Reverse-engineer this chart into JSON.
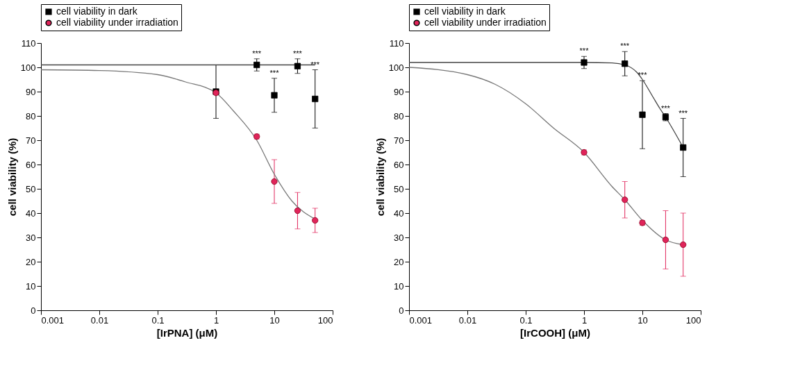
{
  "chart_data": [
    {
      "type": "scatter",
      "xlabel": "[IrPNA] (μM)",
      "ylabel": "cell viability (%)",
      "log": "x",
      "xlim": [
        0.001,
        100
      ],
      "xticks": [
        0.001,
        0.01,
        0.1,
        1,
        10,
        100
      ],
      "ylim": [
        0,
        110
      ],
      "yticks": [
        0,
        10,
        20,
        30,
        40,
        50,
        60,
        70,
        80,
        90,
        100,
        110
      ],
      "grid": false,
      "legend": "top",
      "series": [
        {
          "name": "cell viability in dark",
          "type": "scatter",
          "marker": "square",
          "color": "#000000",
          "x": [
            1,
            5,
            10,
            25,
            50
          ],
          "values": [
            90,
            101,
            88.5,
            100.5,
            87
          ],
          "errors": [
            11,
            2.5,
            7,
            3,
            12
          ]
        },
        {
          "name": "cell viability under irradiation",
          "type": "scatter",
          "marker": "circle",
          "color": "#e0245a",
          "x": [
            1,
            5,
            10,
            25,
            50
          ],
          "values": [
            89.5,
            71.5,
            53,
            41,
            37
          ],
          "errors": [
            null,
            1,
            9,
            7.5,
            5
          ]
        },
        {
          "type": "line",
          "color": "#444444",
          "x": [
            0.001,
            50
          ],
          "values": [
            101,
            101
          ]
        },
        {
          "type": "line",
          "color": "#777777",
          "x": [
            0.001,
            0.01,
            0.1,
            0.3,
            1,
            2,
            5,
            10,
            20,
            50
          ],
          "values": [
            99,
            98.7,
            97,
            94,
            89.5,
            82,
            70,
            56,
            45,
            37.5
          ]
        }
      ],
      "annotations": [
        {
          "text": "***",
          "x": 5,
          "y": 103.5
        },
        {
          "text": "***",
          "x": 10,
          "y": 95.5
        },
        {
          "text": "***",
          "x": 25,
          "y": 103.5
        },
        {
          "text": "***",
          "x": 50,
          "y": 99
        }
      ]
    },
    {
      "type": "scatter",
      "xlabel": "[IrCOOH] (μM)",
      "ylabel": "cell viability (%)",
      "log": "x",
      "xlim": [
        0.001,
        100
      ],
      "xticks": [
        0.001,
        0.01,
        0.1,
        1,
        10,
        100
      ],
      "ylim": [
        0,
        110
      ],
      "yticks": [
        0,
        10,
        20,
        30,
        40,
        50,
        60,
        70,
        80,
        90,
        100,
        110
      ],
      "grid": false,
      "legend": "top",
      "series": [
        {
          "name": "cell viability in dark",
          "type": "scatter",
          "marker": "square",
          "color": "#000000",
          "x": [
            1,
            5,
            10,
            25,
            50
          ],
          "values": [
            102,
            101.5,
            80.5,
            79.5,
            67
          ],
          "errors": [
            2.5,
            5,
            14,
            1.5,
            12
          ]
        },
        {
          "name": "cell viability under irradiation",
          "type": "scatter",
          "marker": "circle",
          "color": "#e0245a",
          "x": [
            1,
            5,
            10,
            25,
            50
          ],
          "values": [
            65,
            45.5,
            36,
            29,
            27
          ],
          "errors": [
            1,
            7.5,
            1,
            12,
            13
          ]
        },
        {
          "type": "line",
          "color": "#444444",
          "x": [
            0.001,
            0.1,
            1,
            3,
            5,
            8,
            10,
            15,
            20,
            25,
            50
          ],
          "values": [
            102,
            102,
            102,
            101.8,
            101,
            98,
            95,
            88,
            83,
            79.5,
            67
          ]
        },
        {
          "type": "line",
          "color": "#777777",
          "x": [
            0.001,
            0.01,
            0.03,
            0.1,
            0.3,
            1,
            3,
            5,
            10,
            25,
            50
          ],
          "values": [
            100,
            97,
            93,
            85,
            75,
            65,
            51,
            45.5,
            37,
            29,
            27
          ]
        }
      ],
      "annotations": [
        {
          "text": "***",
          "x": 1,
          "y": 104.5
        },
        {
          "text": "***",
          "x": 5,
          "y": 106.5
        },
        {
          "text": "***",
          "x": 10,
          "y": 94.5
        },
        {
          "text": "***",
          "x": 25,
          "y": 81
        },
        {
          "text": "***",
          "x": 50,
          "y": 79
        }
      ]
    }
  ]
}
